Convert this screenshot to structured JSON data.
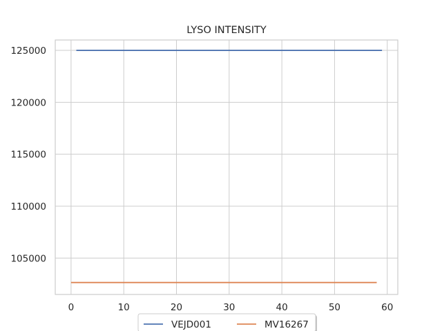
{
  "chart_data": {
    "type": "line",
    "title": "LYSO INTENSITY",
    "xlabel": "",
    "ylabel": "",
    "xlim": [
      -3,
      62
    ],
    "ylim": [
      101500,
      126000
    ],
    "xticks": [
      0,
      10,
      20,
      30,
      40,
      50,
      60
    ],
    "yticks": [
      105000,
      110000,
      115000,
      120000,
      125000
    ],
    "grid": true,
    "legend": "bottom-center",
    "series": [
      {
        "name": "VEJD001",
        "color": "#4c72b0",
        "x": [
          1,
          59
        ],
        "y": [
          125000,
          125000
        ]
      },
      {
        "name": "MV16267",
        "color": "#dd8452",
        "x": [
          0,
          58
        ],
        "y": [
          102650,
          102650
        ]
      }
    ]
  }
}
